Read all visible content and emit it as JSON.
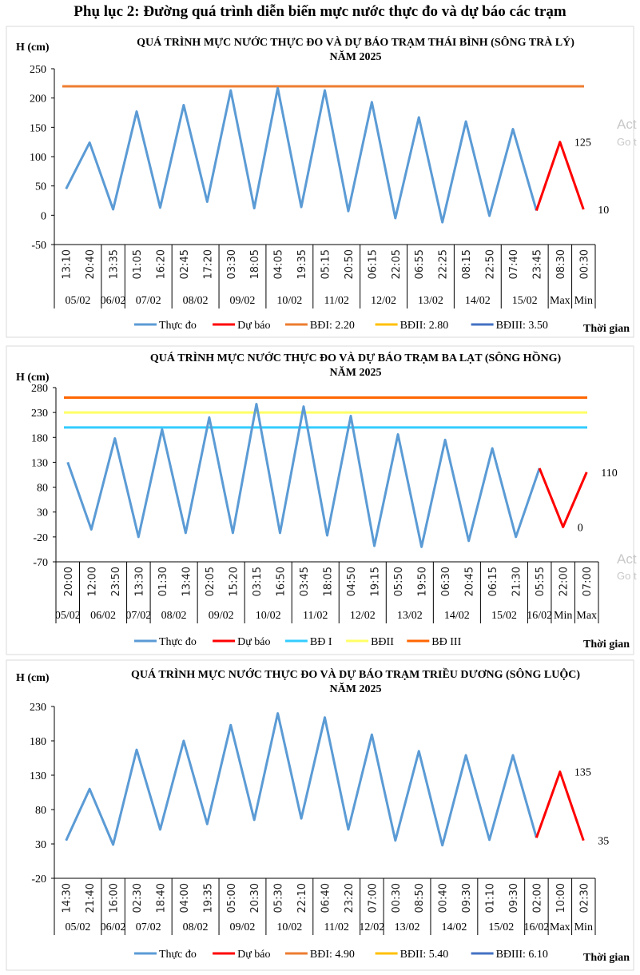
{
  "page_title": "Phụ lục 2: Đường quá trình diễn biến mực nước thực đo và dự báo các trạm",
  "watermark": {
    "line1": "Act",
    "line2": "Go t"
  },
  "colors": {
    "measured": "#5B9BD5",
    "forecast": "#FF0000"
  },
  "chart_data": [
    {
      "type": "line",
      "title": [
        "QUÁ TRÌNH MỰC NƯỚC THỰC ĐO VÀ DỰ BÁO TRẠM THÁI BÌNH (SÔNG TRÀ LÝ)",
        "NĂM 2025"
      ],
      "ylabel": "H (cm)",
      "xlabel": "Thời gian",
      "ylim": [
        -50,
        250
      ],
      "yticks": [
        -50,
        0,
        50,
        100,
        150,
        200,
        250
      ],
      "categories": [
        "13:10",
        "20:40",
        "13:35",
        "01:05",
        "16:20",
        "02:45",
        "17:20",
        "03:30",
        "18:05",
        "04:05",
        "19:35",
        "05:15",
        "20:50",
        "06:15",
        "22:05",
        "06:55",
        "22:25",
        "08:15",
        "22:50",
        "07:40",
        "23:45",
        "08:30",
        "00:30"
      ],
      "date_groups": [
        {
          "label": "05/02",
          "span": 2
        },
        {
          "label": "06/02",
          "span": 1
        },
        {
          "label": "07/02",
          "span": 2
        },
        {
          "label": "08/02",
          "span": 2
        },
        {
          "label": "09/02",
          "span": 2
        },
        {
          "label": "10/02",
          "span": 2
        },
        {
          "label": "11/02",
          "span": 2
        },
        {
          "label": "12/02",
          "span": 2
        },
        {
          "label": "13/02",
          "span": 2
        },
        {
          "label": "14/02",
          "span": 2
        },
        {
          "label": "15/02",
          "span": 2
        },
        {
          "label": "Max",
          "span": 1
        },
        {
          "label": "Min",
          "span": 1
        }
      ],
      "series": [
        {
          "name": "Thực đo",
          "color": "#5B9BD5",
          "values": [
            45,
            124,
            10,
            177,
            13,
            188,
            23,
            213,
            12,
            217,
            14,
            213,
            7,
            193,
            -5,
            167,
            -12,
            160,
            -1,
            147,
            8,
            null,
            null
          ]
        },
        {
          "name": "Dự báo",
          "color": "#FF0000",
          "values": [
            null,
            null,
            null,
            null,
            null,
            null,
            null,
            null,
            null,
            null,
            null,
            null,
            null,
            null,
            null,
            null,
            null,
            null,
            null,
            null,
            8,
            125,
            10
          ]
        }
      ],
      "reference_lines": [
        {
          "name": "BĐI: 2.20",
          "color": "#ED7D31",
          "value": 220
        },
        {
          "name": "BĐII: 2.80",
          "color": "#FFC000",
          "value": 280
        },
        {
          "name": "BĐIII: 3.50",
          "color": "#4472C4",
          "value": 350
        }
      ],
      "data_labels": [
        {
          "index": 21,
          "text": "125"
        },
        {
          "index": 22,
          "text": "10"
        }
      ],
      "legend": "bottom",
      "grid": false
    },
    {
      "type": "line",
      "title": [
        "QUÁ TRÌNH MỰC NƯỚC THỰC ĐO VÀ DỰ BÁO TRẠM BA LẠT (SÔNG HỒNG)",
        "NĂM 2025"
      ],
      "ylabel": "H (cm)",
      "xlabel": "Thời gian",
      "ylim": [
        -70,
        280
      ],
      "yticks": [
        -70,
        -20,
        30,
        80,
        130,
        180,
        230,
        280
      ],
      "categories": [
        "20:00",
        "12:00",
        "23:50",
        "13:30",
        "01:30",
        "13:40",
        "02:05",
        "15:20",
        "03:15",
        "16:50",
        "03:45",
        "18:05",
        "04:50",
        "19:15",
        "05:50",
        "19:50",
        "06:30",
        "20:45",
        "06:15",
        "21:30",
        "05:55",
        "22:00",
        "07:00"
      ],
      "date_groups": [
        {
          "label": "05/02",
          "span": 1
        },
        {
          "label": "06/02",
          "span": 2
        },
        {
          "label": "07/02",
          "span": 1
        },
        {
          "label": "08/02",
          "span": 2
        },
        {
          "label": "09/02",
          "span": 2
        },
        {
          "label": "10/02",
          "span": 2
        },
        {
          "label": "11/02",
          "span": 2
        },
        {
          "label": "12/02",
          "span": 2
        },
        {
          "label": "13/02",
          "span": 2
        },
        {
          "label": "14/02",
          "span": 2
        },
        {
          "label": "15/02",
          "span": 2
        },
        {
          "label": "16/02",
          "span": 1
        },
        {
          "label": "Min",
          "span": 1
        },
        {
          "label": "Max",
          "span": 1
        }
      ],
      "series": [
        {
          "name": "Thực đo",
          "color": "#5B9BD5",
          "values": [
            130,
            -5,
            178,
            -20,
            196,
            -12,
            220,
            -12,
            247,
            -12,
            242,
            -17,
            223,
            -38,
            186,
            -40,
            175,
            -28,
            158,
            -20,
            118,
            null,
            null
          ]
        },
        {
          "name": "Dự báo",
          "color": "#FF0000",
          "values": [
            null,
            null,
            null,
            null,
            null,
            null,
            null,
            null,
            null,
            null,
            null,
            null,
            null,
            null,
            null,
            null,
            null,
            null,
            null,
            null,
            118,
            0,
            110
          ]
        }
      ],
      "reference_lines": [
        {
          "name": "BĐ I",
          "color": "#33CCFF",
          "value": 200
        },
        {
          "name": "BĐII",
          "color": "#FFFF66",
          "value": 230
        },
        {
          "name": "BĐ III",
          "color": "#FF6600",
          "value": 260
        }
      ],
      "data_labels": [
        {
          "index": 21,
          "text": "0"
        },
        {
          "index": 22,
          "text": "110"
        }
      ],
      "legend": "bottom",
      "grid": false
    },
    {
      "type": "line",
      "title": [
        "QUÁ TRÌNH MỰC NƯỚC THỰC ĐO VÀ DỰ BÁO TRẠM TRIỀU DƯƠNG (SÔNG LUỘC)",
        "NĂM 2025"
      ],
      "ylabel": "H (cm)",
      "xlabel": "Thời gian",
      "ylim": [
        -20,
        230
      ],
      "yticks": [
        -20,
        30,
        80,
        130,
        180,
        230
      ],
      "categories": [
        "14:30",
        "21:40",
        "16:00",
        "02:30",
        "18:40",
        "04:00",
        "19:35",
        "05:00",
        "20:30",
        "05:30",
        "22:10",
        "06:40",
        "23:20",
        "07:00",
        "00:30",
        "08:50",
        "00:40",
        "09:30",
        "01:10",
        "09:30",
        "02:00",
        "10:00",
        "02:30"
      ],
      "date_groups": [
        {
          "label": "05/02",
          "span": 2
        },
        {
          "label": "06/02",
          "span": 1
        },
        {
          "label": "07/02",
          "span": 2
        },
        {
          "label": "08/02",
          "span": 2
        },
        {
          "label": "09/02",
          "span": 2
        },
        {
          "label": "10/02",
          "span": 2
        },
        {
          "label": "11/02",
          "span": 2
        },
        {
          "label": "12/02",
          "span": 1
        },
        {
          "label": "13/02",
          "span": 2
        },
        {
          "label": "14/02",
          "span": 2
        },
        {
          "label": "15/02",
          "span": 2
        },
        {
          "label": "16/02",
          "span": 1
        },
        {
          "label": "Max",
          "span": 1
        },
        {
          "label": "Min",
          "span": 1
        }
      ],
      "series": [
        {
          "name": "Thực đo",
          "color": "#5B9BD5",
          "values": [
            35,
            110,
            29,
            167,
            51,
            180,
            59,
            203,
            65,
            220,
            67,
            214,
            51,
            189,
            35,
            165,
            28,
            159,
            36,
            159,
            39,
            null,
            null
          ]
        },
        {
          "name": "Dự báo",
          "color": "#FF0000",
          "values": [
            null,
            null,
            null,
            null,
            null,
            null,
            null,
            null,
            null,
            null,
            null,
            null,
            null,
            null,
            null,
            null,
            null,
            null,
            null,
            null,
            39,
            135,
            35
          ]
        }
      ],
      "reference_lines": [
        {
          "name": "BĐI: 4.90",
          "color": "#ED7D31",
          "value": 490
        },
        {
          "name": "BĐII: 5.40",
          "color": "#FFC000",
          "value": 540
        },
        {
          "name": "BĐIII: 6.10",
          "color": "#4472C4",
          "value": 610
        }
      ],
      "data_labels": [
        {
          "index": 21,
          "text": "135"
        },
        {
          "index": 22,
          "text": "35"
        }
      ],
      "legend": "bottom",
      "grid": false
    }
  ]
}
